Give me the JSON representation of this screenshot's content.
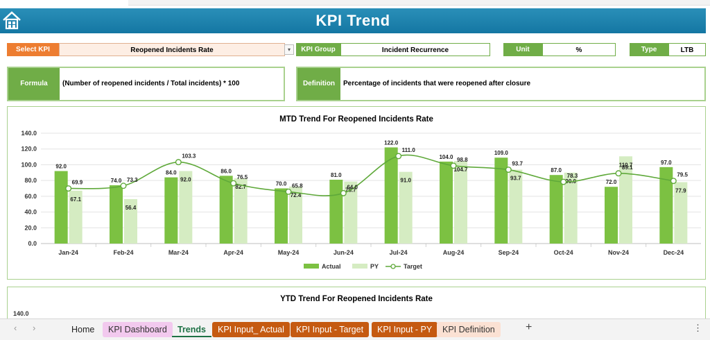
{
  "header": {
    "title": "KPI Trend"
  },
  "kpi": {
    "select_label": "Select KPI",
    "select_value": "Reopened Incidents Rate",
    "group_label": "KPI Group",
    "group_value": "Incident Recurrence",
    "unit_label": "Unit",
    "unit_value": "%",
    "type_label": "Type",
    "type_value": "LTB",
    "formula_label": "Formula",
    "formula_value": "(Number of reopened incidents / Total incidents) * 100",
    "definition_label": "Definition",
    "definition_value": "Percentage of incidents that were reopened after closure"
  },
  "colors": {
    "actual": "#7cc142",
    "py": "#d5ecc2",
    "target": "#5fa93a",
    "accent_orange": "#ed7d31",
    "title_blue": "#1f86b0"
  },
  "chart_data": [
    {
      "type": "bar",
      "title": "MTD Trend For Reopened Incidents Rate",
      "categories": [
        "Jan-24",
        "Feb-24",
        "Mar-24",
        "Apr-24",
        "May-24",
        "Jun-24",
        "Jul-24",
        "Aug-24",
        "Sep-24",
        "Oct-24",
        "Nov-24",
        "Dec-24"
      ],
      "ylim": [
        0,
        140
      ],
      "yticks": [
        "0.0",
        "20.0",
        "40.0",
        "60.0",
        "80.0",
        "100.0",
        "120.0",
        "140.0"
      ],
      "legend_position": "bottom",
      "series": [
        {
          "name": "Actual",
          "kind": "bar",
          "values": [
            92.0,
            74.0,
            84.0,
            86.0,
            70.0,
            81.0,
            122.0,
            104.0,
            109.0,
            87.0,
            72.0,
            97.0
          ]
        },
        {
          "name": "PY",
          "kind": "bar",
          "values": [
            67.1,
            56.4,
            92.0,
            82.7,
            72.4,
            78.7,
            91.0,
            104.7,
            93.7,
            90.0,
            110.7,
            77.9
          ]
        },
        {
          "name": "Target",
          "kind": "line",
          "values": [
            69.9,
            73.3,
            103.3,
            76.5,
            65.8,
            64.0,
            111.0,
            98.8,
            93.7,
            78.3,
            89.1,
            79.5
          ]
        }
      ]
    },
    {
      "type": "bar",
      "title": "YTD Trend For Reopened Incidents Rate",
      "ylim": [
        0,
        140
      ],
      "yticks": [
        "140.0"
      ]
    }
  ],
  "tabs": [
    {
      "label": "Home",
      "bg": "",
      "color": "#222"
    },
    {
      "label": "KPI Dashboard",
      "bg": "#f2c9ee",
      "color": "#333"
    },
    {
      "label": "Trends",
      "bg": "",
      "color": "#1e7145"
    },
    {
      "label": "KPI Input_ Actual",
      "bg": "#c55a11",
      "color": "#fff"
    },
    {
      "label": "KPI Input - Target",
      "bg": "#c55a11",
      "color": "#fff"
    },
    {
      "label": "KPI Input - PY",
      "bg": "#c55a11",
      "color": "#fff"
    },
    {
      "label": "KPI Definition",
      "bg": "#fbe1d3",
      "color": "#333"
    }
  ],
  "tabbar_icons": {
    "prev": "‹",
    "next": "›",
    "add": "+",
    "more": "⋮"
  }
}
